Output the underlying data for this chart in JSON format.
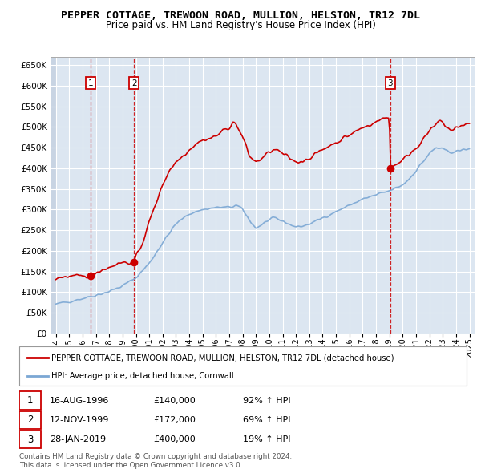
{
  "title": "PEPPER COTTAGE, TREWOON ROAD, MULLION, HELSTON, TR12 7DL",
  "subtitle": "Price paid vs. HM Land Registry's House Price Index (HPI)",
  "ylim": [
    0,
    670000
  ],
  "yticks": [
    0,
    50000,
    100000,
    150000,
    200000,
    250000,
    300000,
    350000,
    400000,
    450000,
    500000,
    550000,
    600000,
    650000
  ],
  "ytick_labels": [
    "£0",
    "£50K",
    "£100K",
    "£150K",
    "£200K",
    "£250K",
    "£300K",
    "£350K",
    "£400K",
    "£450K",
    "£500K",
    "£550K",
    "£600K",
    "£650K"
  ],
  "xlim_start": 1993.6,
  "xlim_end": 2025.4,
  "xticks": [
    1994,
    1995,
    1996,
    1997,
    1998,
    1999,
    2000,
    2001,
    2002,
    2003,
    2004,
    2005,
    2006,
    2007,
    2008,
    2009,
    2010,
    2011,
    2012,
    2013,
    2014,
    2015,
    2016,
    2017,
    2018,
    2019,
    2020,
    2021,
    2022,
    2023,
    2024,
    2025
  ],
  "bg_color": "#ffffff",
  "plot_bg_color": "#dce6f1",
  "grid_color": "#ffffff",
  "hatch_color": "#c8d4e3",
  "red_color": "#cc0000",
  "blue_color": "#7ba7d4",
  "sale_dates": [
    1996.617,
    1999.867,
    2019.075
  ],
  "sale_prices": [
    140000,
    172000,
    400000
  ],
  "sale_labels": [
    "1",
    "2",
    "3"
  ],
  "transactions": [
    {
      "label": "1",
      "date": "16-AUG-1996",
      "price": "£140,000",
      "hpi": "92% ↑ HPI"
    },
    {
      "label": "2",
      "date": "12-NOV-1999",
      "price": "£172,000",
      "hpi": "69% ↑ HPI"
    },
    {
      "label": "3",
      "date": "28-JAN-2019",
      "price": "£400,000",
      "hpi": "19% ↑ HPI"
    }
  ],
  "legend_line1": "PEPPER COTTAGE, TREWOON ROAD, MULLION, HELSTON, TR12 7DL (detached house)",
  "legend_line2": "HPI: Average price, detached house, Cornwall",
  "footnote1": "Contains HM Land Registry data © Crown copyright and database right 2024.",
  "footnote2": "This data is licensed under the Open Government Licence v3.0.",
  "hpi_keypoints": [
    [
      1994.0,
      70000
    ],
    [
      1995.0,
      78000
    ],
    [
      1996.0,
      85000
    ],
    [
      1997.0,
      93000
    ],
    [
      1998.0,
      102000
    ],
    [
      1999.0,
      115000
    ],
    [
      2000.0,
      135000
    ],
    [
      2001.0,
      170000
    ],
    [
      2002.0,
      220000
    ],
    [
      2003.0,
      265000
    ],
    [
      2004.0,
      290000
    ],
    [
      2005.0,
      300000
    ],
    [
      2006.0,
      305000
    ],
    [
      2007.0,
      305000
    ],
    [
      2007.5,
      310000
    ],
    [
      2008.0,
      300000
    ],
    [
      2008.5,
      275000
    ],
    [
      2009.0,
      255000
    ],
    [
      2009.5,
      265000
    ],
    [
      2010.0,
      275000
    ],
    [
      2010.5,
      278000
    ],
    [
      2011.0,
      272000
    ],
    [
      2011.5,
      265000
    ],
    [
      2012.0,
      258000
    ],
    [
      2012.5,
      260000
    ],
    [
      2013.0,
      265000
    ],
    [
      2013.5,
      272000
    ],
    [
      2014.0,
      280000
    ],
    [
      2014.5,
      288000
    ],
    [
      2015.0,
      295000
    ],
    [
      2015.5,
      303000
    ],
    [
      2016.0,
      310000
    ],
    [
      2016.5,
      318000
    ],
    [
      2017.0,
      325000
    ],
    [
      2017.5,
      330000
    ],
    [
      2018.0,
      335000
    ],
    [
      2018.5,
      340000
    ],
    [
      2019.0,
      345000
    ],
    [
      2019.5,
      352000
    ],
    [
      2020.0,
      360000
    ],
    [
      2020.5,
      375000
    ],
    [
      2021.0,
      395000
    ],
    [
      2021.5,
      415000
    ],
    [
      2022.0,
      435000
    ],
    [
      2022.5,
      450000
    ],
    [
      2023.0,
      445000
    ],
    [
      2023.5,
      440000
    ],
    [
      2024.0,
      440000
    ],
    [
      2024.5,
      445000
    ],
    [
      2025.0,
      445000
    ]
  ],
  "red_keypoints": [
    [
      1994.0,
      135000
    ],
    [
      1995.0,
      138000
    ],
    [
      1996.0,
      138000
    ],
    [
      1996.617,
      140000
    ],
    [
      1997.0,
      148000
    ],
    [
      1997.5,
      155000
    ],
    [
      1998.0,
      160000
    ],
    [
      1998.5,
      168000
    ],
    [
      1999.0,
      172000
    ],
    [
      1999.867,
      172000
    ],
    [
      2000.0,
      185000
    ],
    [
      2000.5,
      220000
    ],
    [
      2001.0,
      270000
    ],
    [
      2001.5,
      315000
    ],
    [
      2002.0,
      360000
    ],
    [
      2002.5,
      395000
    ],
    [
      2003.0,
      415000
    ],
    [
      2003.5,
      430000
    ],
    [
      2004.0,
      445000
    ],
    [
      2004.5,
      460000
    ],
    [
      2005.0,
      468000
    ],
    [
      2005.5,
      472000
    ],
    [
      2006.0,
      478000
    ],
    [
      2006.5,
      490000
    ],
    [
      2007.0,
      500000
    ],
    [
      2007.3,
      510000
    ],
    [
      2007.5,
      508000
    ],
    [
      2008.0,
      475000
    ],
    [
      2008.3,
      450000
    ],
    [
      2008.5,
      430000
    ],
    [
      2009.0,
      415000
    ],
    [
      2009.5,
      425000
    ],
    [
      2010.0,
      440000
    ],
    [
      2010.5,
      445000
    ],
    [
      2011.0,
      435000
    ],
    [
      2011.5,
      425000
    ],
    [
      2012.0,
      415000
    ],
    [
      2012.5,
      418000
    ],
    [
      2013.0,
      425000
    ],
    [
      2013.5,
      435000
    ],
    [
      2014.0,
      445000
    ],
    [
      2014.5,
      455000
    ],
    [
      2015.0,
      462000
    ],
    [
      2015.5,
      472000
    ],
    [
      2016.0,
      480000
    ],
    [
      2016.5,
      490000
    ],
    [
      2017.0,
      498000
    ],
    [
      2017.5,
      505000
    ],
    [
      2018.0,
      512000
    ],
    [
      2018.5,
      520000
    ],
    [
      2019.0,
      525000
    ],
    [
      2019.075,
      400000
    ],
    [
      2019.5,
      410000
    ],
    [
      2020.0,
      420000
    ],
    [
      2020.5,
      435000
    ],
    [
      2021.0,
      450000
    ],
    [
      2021.5,
      468000
    ],
    [
      2022.0,
      490000
    ],
    [
      2022.5,
      505000
    ],
    [
      2022.8,
      515000
    ],
    [
      2023.0,
      510000
    ],
    [
      2023.3,
      500000
    ],
    [
      2023.5,
      495000
    ],
    [
      2023.8,
      490000
    ],
    [
      2024.0,
      498000
    ],
    [
      2024.5,
      505000
    ],
    [
      2025.0,
      508000
    ]
  ]
}
